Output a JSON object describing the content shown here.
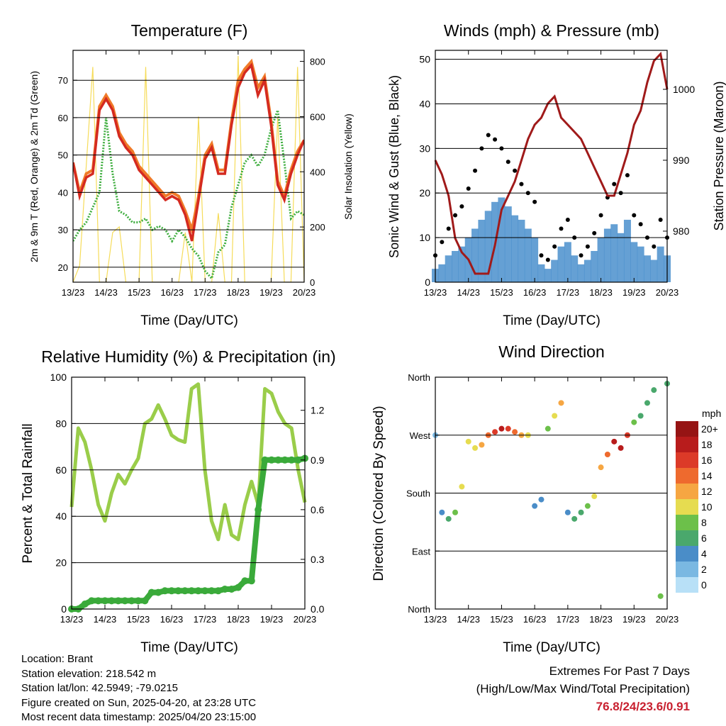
{
  "x_ticks": [
    "13/23",
    "14/23",
    "15/23",
    "16/23",
    "17/23",
    "18/23",
    "19/23",
    "20/23"
  ],
  "temperature": {
    "title": "Temperature (F)",
    "xlabel": "Time (Day/UTC)",
    "ylabel": "2m & 9m T (Red, Orange) & 2m Td (Green)",
    "y2label": "Solar Insolation (Yellow)",
    "yticks": [
      "20",
      "30",
      "40",
      "50",
      "60",
      "70"
    ],
    "y2ticks": [
      "0",
      "200",
      "400",
      "600",
      "800"
    ]
  },
  "winds": {
    "title": "Winds (mph) & Pressure (mb)",
    "xlabel": "Time (Day/UTC)",
    "ylabel": "Sonic Wind & Gust (Blue, Black)",
    "y2label": "Station Pressure (Maroon)",
    "yticks": [
      "0",
      "10",
      "20",
      "30",
      "40",
      "50"
    ],
    "y2ticks": [
      "980",
      "990",
      "1000"
    ]
  },
  "humidity": {
    "title": "Relative Humidity (%) & Precipitation (in)",
    "xlabel": "Time (Day/UTC)",
    "ylabel": "Percent & Total Rainfall",
    "yticks": [
      "0",
      "20",
      "40",
      "60",
      "80",
      "100"
    ],
    "y2ticks": [
      "0.0",
      "0.3",
      "0.6",
      "0.9",
      "1.2"
    ]
  },
  "direction": {
    "title": "Wind Direction",
    "xlabel": "Time (Day/UTC)",
    "ylabel": "Direction (Colored By Speed)",
    "yticks": [
      "North",
      "East",
      "South",
      "West",
      "North"
    ],
    "legend_title": "mph",
    "legend_labels": [
      "0",
      "2",
      "4",
      "6",
      "8",
      "10",
      "12",
      "14",
      "16",
      "18",
      "20+"
    ],
    "legend_colors": [
      "#b8e0f7",
      "#7ab8e2",
      "#4a8dc8",
      "#4aa86c",
      "#6cc04a",
      "#e6dc50",
      "#f6a642",
      "#ee6a2e",
      "#dc3a28",
      "#b81c1c",
      "#961414"
    ]
  },
  "station": {
    "location": "Location: Brant",
    "elevation": "Station elevation: 218.542 m",
    "latlon": "Station lat/lon: 42.5949; -79.0215",
    "created": "Figure created on Sun, 2025-04-20, at 23:28 UTC",
    "recent": "Most recent data timestamp: 2025/04/20 23:15:00"
  },
  "extremes": {
    "line1": "Extremes For Past 7 Days",
    "line2": "(High/Low/Max Wind/Total Precipitation)",
    "values": "76.8/24/23.6/0.91"
  },
  "chart_data": [
    {
      "type": "line",
      "title": "Temperature (F)",
      "xlabel": "Time (Day/UTC)",
      "ylabel": "2m & 9m T (Red, Orange) & 2m Td (Green)",
      "y2label": "Solar Insolation (Yellow)",
      "x": [
        13,
        13.2,
        13.4,
        13.6,
        13.8,
        14,
        14.2,
        14.4,
        14.6,
        14.8,
        15,
        15.2,
        15.4,
        15.6,
        15.8,
        16,
        16.2,
        16.4,
        16.6,
        16.8,
        17,
        17.2,
        17.4,
        17.6,
        17.8,
        18,
        18.2,
        18.4,
        18.6,
        18.8,
        19,
        19.2,
        19.4,
        19.6,
        19.8,
        20
      ],
      "ylim": [
        16,
        78
      ],
      "y2lim": [
        0,
        840
      ],
      "series": [
        {
          "color": "#d42a20",
          "values": [
            48,
            39,
            44,
            45,
            62,
            65,
            62,
            55,
            52,
            50,
            46,
            44,
            42,
            40,
            38,
            39,
            38,
            34,
            27,
            38,
            49,
            52,
            45,
            45,
            58,
            68,
            72,
            74,
            66,
            70,
            58,
            42,
            38,
            45,
            50,
            54
          ]
        },
        {
          "color": "#f07a28",
          "values": [
            48,
            40,
            45,
            46,
            63,
            66,
            63,
            56,
            53,
            51,
            47,
            45,
            43,
            41,
            39,
            40,
            39,
            35,
            30,
            39,
            50,
            53,
            46,
            46,
            59,
            70,
            73,
            75,
            68,
            71,
            59,
            43,
            39,
            46,
            51,
            54
          ]
        },
        {
          "color": "#3fae3f",
          "values": [
            27,
            30,
            32,
            36,
            40,
            60,
            45,
            35,
            34,
            32,
            32,
            33,
            30,
            31,
            30,
            27,
            30,
            28,
            25,
            23,
            19,
            17,
            24,
            26,
            36,
            42,
            48,
            50,
            47,
            50,
            57,
            62,
            48,
            33,
            35,
            34
          ]
        },
        {
          "color": "#f6dc5a",
          "values": [
            0,
            60,
            420,
            780,
            0,
            0,
            180,
            200,
            0,
            0,
            0,
            780,
            0,
            0,
            0,
            0,
            0,
            180,
            0,
            600,
            0,
            0,
            250,
            0,
            0,
            820,
            0,
            0,
            0,
            0,
            0,
            600,
            0,
            0,
            780,
            0
          ]
        }
      ]
    },
    {
      "type": "scatter",
      "title": "Winds (mph) & Pressure (mb)",
      "xlabel": "Time (Day/UTC)",
      "ylabel": "Sonic Wind & Gust (Blue, Black)",
      "y2label": "Station Pressure (Maroon)",
      "x": [
        13,
        13.2,
        13.4,
        13.6,
        13.8,
        14,
        14.2,
        14.4,
        14.6,
        14.8,
        15,
        15.2,
        15.4,
        15.6,
        15.8,
        16,
        16.2,
        16.4,
        16.6,
        16.8,
        17,
        17.2,
        17.4,
        17.6,
        17.8,
        18,
        18.2,
        18.4,
        18.6,
        18.8,
        19,
        19.2,
        19.4,
        19.6,
        19.8,
        20
      ],
      "ylim": [
        0,
        52
      ],
      "y2lim": [
        972.8,
        1005.5
      ],
      "series": [
        {
          "color": "#4a8fcd",
          "values": [
            3,
            4,
            6,
            7,
            8,
            10,
            12,
            14,
            16,
            18,
            19,
            17,
            15,
            14,
            12,
            10,
            4,
            3,
            5,
            8,
            9,
            6,
            4,
            5,
            7,
            10,
            12,
            13,
            11,
            14,
            9,
            8,
            6,
            5,
            8,
            6
          ]
        },
        {
          "color": "#000000",
          "values": [
            6,
            9,
            12,
            15,
            17,
            21,
            25,
            30,
            33,
            32,
            30,
            27,
            25,
            22,
            20,
            18,
            6,
            5,
            8,
            12,
            14,
            10,
            6,
            8,
            11,
            15,
            19,
            22,
            20,
            24,
            15,
            13,
            10,
            8,
            14,
            10
          ]
        },
        {
          "color": "#a01a1a",
          "values": [
            990,
            988,
            985,
            979,
            977,
            976,
            974,
            974,
            974,
            978,
            983,
            985,
            987,
            990,
            993,
            995,
            996,
            998,
            999,
            996,
            995,
            994,
            993,
            991,
            989,
            987,
            985,
            985,
            988,
            991,
            995,
            997,
            1001,
            1004,
            1005,
            1000
          ]
        }
      ]
    },
    {
      "type": "line",
      "title": "Relative Humidity (%) & Precipitation (in)",
      "xlabel": "Time (Day/UTC)",
      "ylabel": "Percent & Total Rainfall",
      "x": [
        13,
        13.2,
        13.4,
        13.6,
        13.8,
        14,
        14.2,
        14.4,
        14.6,
        14.8,
        15,
        15.2,
        15.4,
        15.6,
        15.8,
        16,
        16.2,
        16.4,
        16.6,
        16.8,
        17,
        17.2,
        17.4,
        17.6,
        17.8,
        18,
        18.2,
        18.4,
        18.6,
        18.8,
        19,
        19.2,
        19.4,
        19.6,
        19.8,
        20
      ],
      "ylim": [
        0,
        100
      ],
      "y2lim": [
        0,
        1.4
      ],
      "series": [
        {
          "color": "#9acd4a",
          "values": [
            44,
            78,
            72,
            60,
            45,
            38,
            50,
            58,
            54,
            60,
            65,
            80,
            82,
            88,
            82,
            75,
            73,
            72,
            95,
            97,
            60,
            38,
            30,
            45,
            32,
            30,
            45,
            55,
            45,
            95,
            93,
            85,
            80,
            78,
            60,
            46
          ]
        },
        {
          "color": "#3aaa3a",
          "values": [
            0.0,
            0.0,
            0.03,
            0.05,
            0.05,
            0.05,
            0.05,
            0.05,
            0.05,
            0.05,
            0.05,
            0.05,
            0.1,
            0.1,
            0.11,
            0.11,
            0.11,
            0.11,
            0.11,
            0.11,
            0.11,
            0.11,
            0.11,
            0.12,
            0.12,
            0.13,
            0.17,
            0.17,
            0.6,
            0.9,
            0.9,
            0.9,
            0.9,
            0.9,
            0.9,
            0.91
          ]
        }
      ]
    },
    {
      "type": "scatter",
      "title": "Wind Direction",
      "xlabel": "Time (Day/UTC)",
      "ylabel": "Direction (Colored By Speed)",
      "x": [
        13,
        13.2,
        13.4,
        13.6,
        13.8,
        14,
        14.2,
        14.4,
        14.6,
        14.8,
        15,
        15.2,
        15.4,
        15.6,
        15.8,
        16,
        16.2,
        16.4,
        16.6,
        16.8,
        17,
        17.2,
        17.4,
        17.6,
        17.8,
        18,
        18.2,
        18.4,
        18.6,
        18.8,
        19,
        19.2,
        19.4,
        19.6,
        19.8,
        20
      ],
      "ylim": [
        0,
        360
      ],
      "ytick_values": [
        0,
        90,
        180,
        270,
        360
      ],
      "direction": [
        270,
        150,
        140,
        150,
        190,
        260,
        250,
        255,
        270,
        275,
        280,
        280,
        275,
        270,
        270,
        160,
        170,
        280,
        300,
        320,
        150,
        140,
        150,
        160,
        175,
        220,
        240,
        260,
        250,
        270,
        290,
        300,
        320,
        340,
        20,
        350
      ],
      "speed": [
        2,
        4,
        6,
        8,
        10,
        9,
        10,
        12,
        14,
        16,
        17,
        16,
        14,
        12,
        10,
        4,
        3,
        8,
        10,
        12,
        4,
        6,
        6,
        8,
        9,
        11,
        14,
        17,
        18,
        16,
        8,
        6,
        6,
        5,
        7,
        5
      ]
    }
  ]
}
